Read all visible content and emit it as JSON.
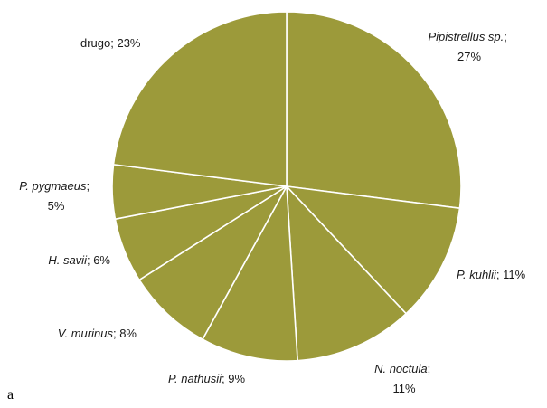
{
  "chart_data": {
    "type": "pie",
    "slices": [
      {
        "species": "Pipistrellus sp.",
        "sep": ";",
        "pct": "27%",
        "value": 27
      },
      {
        "species": "P. kuhlii",
        "sep": "; ",
        "pct": "11%",
        "value": 11
      },
      {
        "species": "N. noctula",
        "sep": ";",
        "pct": "11%",
        "value": 11
      },
      {
        "species": "P. nathusii",
        "sep": "; ",
        "pct": "9%",
        "value": 9
      },
      {
        "species": "V. murinus",
        "sep": "; ",
        "pct": "8%",
        "value": 8
      },
      {
        "species": "H. savii",
        "sep": "; ",
        "pct": "6%",
        "value": 6
      },
      {
        "species": "P. pygmaeus",
        "sep": ";",
        "pct": "5%",
        "value": 5
      },
      {
        "species": "",
        "sep": "",
        "pct": "drugo; 23%",
        "value": 23
      }
    ],
    "colors": {
      "fill": "#9c9a3a",
      "stroke": "#ffffff"
    },
    "legend": "none"
  },
  "panel_label": "a"
}
